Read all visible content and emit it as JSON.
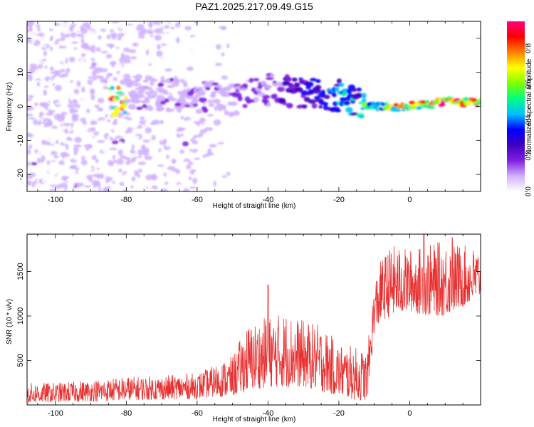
{
  "title": "PAZ1.2025.217.09.49.G15",
  "chart_data": [
    {
      "type": "heatmap",
      "name": "spectrogram",
      "xlabel": "Height of straight line (km)",
      "ylabel": "Frequency (Hz)",
      "xlim": [
        -108,
        20
      ],
      "ylim": [
        -25,
        25
      ],
      "x_ticks": [
        -100,
        -80,
        -60,
        -40,
        -20,
        0
      ],
      "x_tick_labels": [
        "-100",
        "-80",
        "-60",
        "-40",
        "-20",
        "0"
      ],
      "y_ticks": [
        -20,
        -10,
        0,
        10,
        20
      ],
      "y_tick_labels": [
        "-20",
        "-10",
        "0",
        "10",
        "20"
      ],
      "colorbar": {
        "label": "Normalized spectral amplitude",
        "range": [
          0,
          0.95
        ],
        "ticks": [
          0.0,
          0.2,
          0.4,
          0.6,
          0.8
        ],
        "tick_labels": [
          "0.0",
          "0.2",
          "0.4",
          "0.6",
          "0.8"
        ],
        "colormap": [
          "#ffffff",
          "#d0b0ff",
          "#8020e0",
          "#4000c0",
          "#0000ff",
          "#00c0ff",
          "#00ff80",
          "#80ff00",
          "#ffff00",
          "#ff8000",
          "#ff0000",
          "#ff0080"
        ]
      },
      "signal_ridge": [
        {
          "x": -80,
          "y": 4,
          "amp": 0.12
        },
        {
          "x": -60,
          "y": 3,
          "amp": 0.15
        },
        {
          "x": -50,
          "y": 2,
          "amp": 0.15
        },
        {
          "x": -40,
          "y": 5,
          "amp": 0.2
        },
        {
          "x": -30,
          "y": 4,
          "amp": 0.3
        },
        {
          "x": -20,
          "y": 3,
          "amp": 0.45
        },
        {
          "x": -10,
          "y": 0,
          "amp": 0.55
        },
        {
          "x": -5,
          "y": -0.5,
          "amp": 0.8
        },
        {
          "x": 0,
          "y": 0,
          "amp": 0.75
        },
        {
          "x": 5,
          "y": 0.5,
          "amp": 0.85
        },
        {
          "x": 10,
          "y": 1.5,
          "amp": 0.9
        },
        {
          "x": 20,
          "y": 1,
          "amp": 0.9
        }
      ]
    },
    {
      "type": "line",
      "name": "snr",
      "xlabel": "Height of straight line (km)",
      "ylabel": "SNR (10 * v/v)",
      "xlim": [
        -108,
        20
      ],
      "ylim": [
        0,
        1920
      ],
      "x_ticks": [
        -100,
        -80,
        -60,
        -40,
        -20,
        0
      ],
      "x_tick_labels": [
        "-100",
        "-80",
        "-60",
        "-40",
        "-20",
        "0"
      ],
      "y_ticks": [
        500,
        1000,
        1500
      ],
      "y_tick_labels": [
        "500",
        "1000",
        "1500"
      ],
      "color": "#e83030",
      "envelope": {
        "x": [
          -108,
          -100,
          -90,
          -80,
          -70,
          -60,
          -55,
          -50,
          -46,
          -40,
          -35,
          -30,
          -25,
          -20,
          -15,
          -12,
          -10,
          -8,
          -5,
          0,
          5,
          10,
          15,
          20
        ],
        "low": [
          20,
          30,
          40,
          50,
          60,
          70,
          90,
          100,
          150,
          200,
          200,
          200,
          150,
          100,
          50,
          50,
          800,
          950,
          1000,
          1050,
          1000,
          1000,
          1100,
          1200
        ],
        "high": [
          250,
          250,
          280,
          320,
          330,
          360,
          450,
          550,
          900,
          1000,
          1050,
          950,
          900,
          700,
          650,
          600,
          1400,
          1650,
          1800,
          1750,
          1800,
          1850,
          1800,
          1750
        ]
      },
      "peaks": [
        {
          "x": -40,
          "y": 1350
        },
        {
          "x": 4,
          "y": 1920
        },
        {
          "x": 12,
          "y": 1880
        }
      ]
    }
  ]
}
